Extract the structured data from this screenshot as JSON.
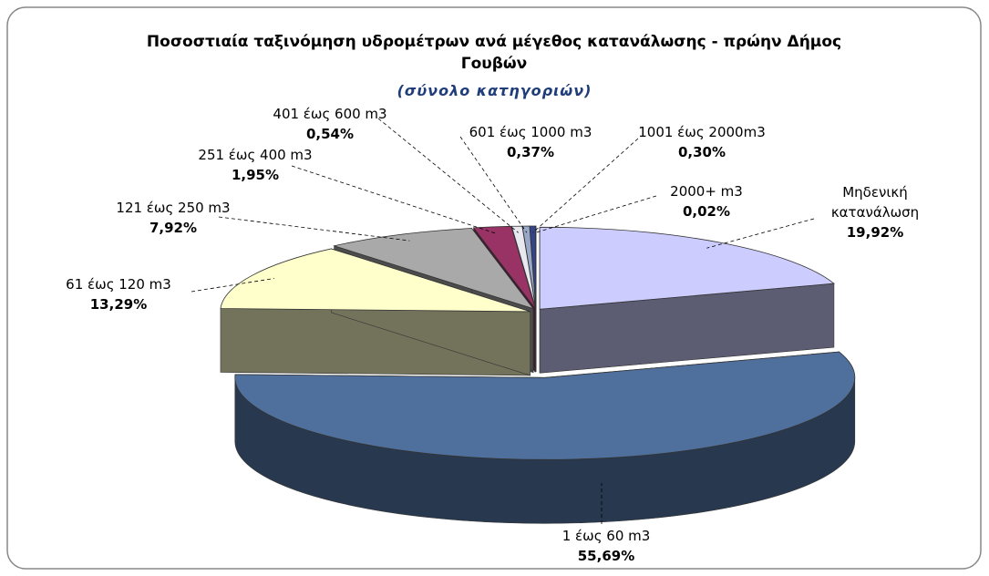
{
  "chart_data": {
    "type": "pie",
    "title": "Ποσοστιαία ταξινόμηση υδρομέτρων ανά μέγεθος κατανάλωσης - πρώην Δήμος Γουβών",
    "subtitle": "(σύνολο κατηγοριών)",
    "categories": [
      "Μηδενική κατανάλωση",
      "1 έως 60 m3",
      "61 έως 120 m3",
      "121 έως 250 m3",
      "251 έως 400 m3",
      "401 έως 600 m3",
      "601 έως 1000 m3",
      "1001 έως 2000m3",
      "2000+ m3"
    ],
    "values": [
      19.92,
      55.69,
      13.29,
      7.92,
      1.95,
      0.54,
      0.37,
      0.3,
      0.02
    ],
    "value_labels": [
      "19,92%",
      "55,69%",
      "13,29%",
      "7,92%",
      "1,95%",
      "0,54%",
      "0,37%",
      "0,30%",
      "0,02%"
    ],
    "colors": [
      "#ccccff",
      "#4f709c",
      "#ffffcc",
      "#a9a9a9",
      "#993366",
      "#e8e8f0",
      "#9aa8c8",
      "#33448a",
      "#202060"
    ]
  }
}
